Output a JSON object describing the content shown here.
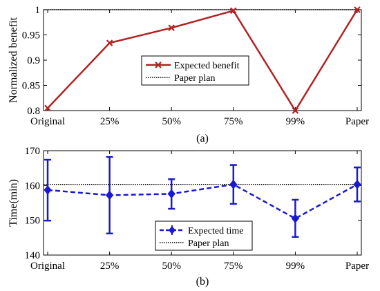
{
  "chart_data": [
    {
      "type": "line",
      "categories": [
        "Original",
        "25%",
        "50%",
        "75%",
        "99%",
        "Paper"
      ],
      "ylabel": "Normalized benefit",
      "xlabel": "",
      "caption": "(a)",
      "ylim": [
        0.8,
        1.0
      ],
      "yticks": [
        0.8,
        0.85,
        0.9,
        0.95,
        1
      ],
      "ytick_labels": [
        "0.8",
        "0.85",
        "0.9",
        "0.95",
        "1"
      ],
      "legend_position": "center-right",
      "series": [
        {
          "name": "Expected benefit",
          "values": [
            0.805,
            0.934,
            0.964,
            0.998,
            0.8,
            1.0
          ],
          "color": "#b22222",
          "marker": "x",
          "style": "solid"
        },
        {
          "name": "Paper plan",
          "values": [
            1.0,
            1.0,
            1.0,
            1.0,
            1.0,
            1.0
          ],
          "color": "#000000",
          "style": "dotted"
        }
      ]
    },
    {
      "type": "line",
      "categories": [
        "Original",
        "25%",
        "50%",
        "75%",
        "99%",
        "Paper"
      ],
      "ylabel": "Time(min)",
      "xlabel": "",
      "caption": "(b)",
      "ylim": [
        140,
        170
      ],
      "yticks": [
        140,
        150,
        160,
        170
      ],
      "ytick_labels": [
        "140",
        "150",
        "160",
        "170"
      ],
      "legend_position": "bottom-center",
      "series": [
        {
          "name": "Expected time",
          "values": [
            158.7,
            157.2,
            157.6,
            160.3,
            150.5,
            160.3
          ],
          "error_low": [
            149.9,
            146.2,
            153.3,
            154.7,
            145.2,
            155.4
          ],
          "error_high": [
            167.4,
            168.2,
            161.8,
            165.9,
            155.9,
            165.2
          ],
          "color": "#1a1acd",
          "marker": "diamond",
          "style": "dashed"
        },
        {
          "name": "Paper plan",
          "values": [
            160.3,
            160.3,
            160.3,
            160.3,
            160.3,
            160.3
          ],
          "color": "#000000",
          "style": "dotted"
        }
      ]
    }
  ]
}
